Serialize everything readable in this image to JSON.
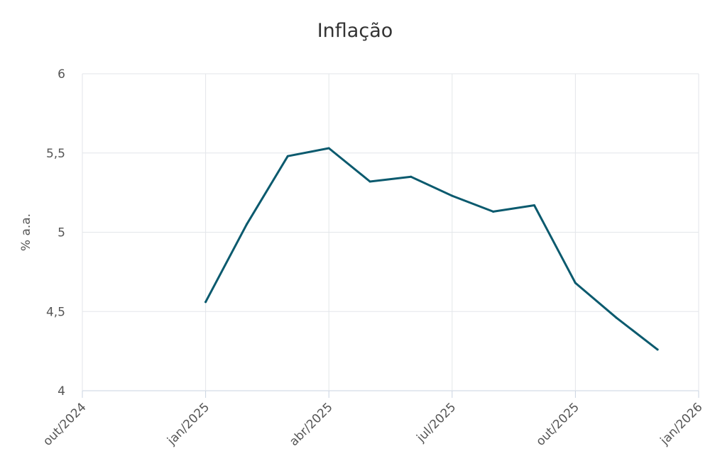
{
  "chart_data": {
    "type": "line",
    "title": "Inflação",
    "xlabel": "",
    "ylabel": "% a.a.",
    "ylim": [
      4,
      6
    ],
    "y_ticks": [
      4,
      4.5,
      5,
      5.5,
      6
    ],
    "y_tick_labels": [
      "4",
      "4,5",
      "5",
      "5,5",
      "6"
    ],
    "x_ticks": [
      "2024-10",
      "2025-01",
      "2025-04",
      "2025-07",
      "2025-10",
      "2026-01"
    ],
    "x_tick_labels": [
      "out/2024",
      "jan/2025",
      "abr/2025",
      "jul/2025",
      "out/2025",
      "jan/2026"
    ],
    "grid": true,
    "series": [
      {
        "color": "#0b5a6e",
        "x": [
          "2025-01",
          "2025-02",
          "2025-03",
          "2025-04",
          "2025-05",
          "2025-06",
          "2025-07",
          "2025-08",
          "2025-09",
          "2025-10",
          "2025-11",
          "2025-12"
        ],
        "values": [
          4.56,
          5.05,
          5.48,
          5.53,
          5.32,
          5.35,
          5.23,
          5.13,
          5.17,
          4.68,
          4.46,
          4.26
        ]
      }
    ]
  }
}
